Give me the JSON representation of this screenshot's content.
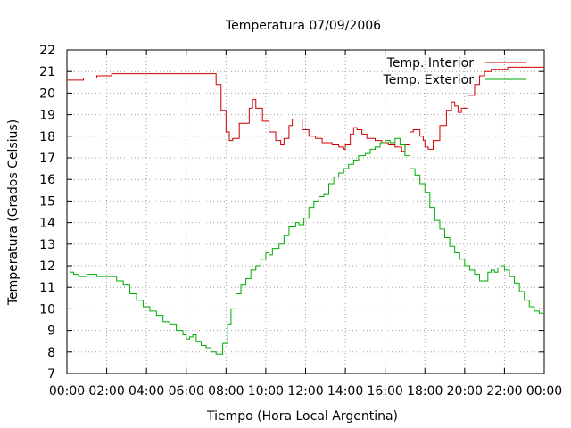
{
  "chart_data": {
    "type": "line",
    "title": "Temperatura 07/09/2006",
    "xlabel": "Tiempo (Hora Local Argentina)",
    "ylabel": "Temperatura (Grados Celsius)",
    "ylim": [
      7,
      22
    ],
    "y_ticks": [
      7,
      8,
      9,
      10,
      11,
      12,
      13,
      14,
      15,
      16,
      17,
      18,
      19,
      20,
      21,
      22
    ],
    "x_tick_labels": [
      "00:00",
      "02:00",
      "04:00",
      "06:00",
      "08:00",
      "10:00",
      "12:00",
      "14:00",
      "16:00",
      "18:00",
      "20:00",
      "22:00",
      "00:00"
    ],
    "grid": true,
    "legend_position": "top-right",
    "series": [
      {
        "name": "Temp. Interior",
        "color": "#cc0000",
        "points": [
          [
            "00:00",
            20.6
          ],
          [
            "00:45",
            20.6
          ],
          [
            "00:50",
            20.7
          ],
          [
            "01:25",
            20.7
          ],
          [
            "01:30",
            20.8
          ],
          [
            "02:10",
            20.8
          ],
          [
            "02:15",
            20.9
          ],
          [
            "07:20",
            20.9
          ],
          [
            "07:30",
            20.4
          ],
          [
            "07:45",
            19.2
          ],
          [
            "08:00",
            18.2
          ],
          [
            "08:10",
            17.8
          ],
          [
            "08:20",
            17.9
          ],
          [
            "08:40",
            18.6
          ],
          [
            "09:10",
            19.3
          ],
          [
            "09:20",
            19.7
          ],
          [
            "09:30",
            19.3
          ],
          [
            "09:50",
            18.7
          ],
          [
            "10:10",
            18.2
          ],
          [
            "10:30",
            17.8
          ],
          [
            "10:45",
            17.6
          ],
          [
            "10:55",
            17.9
          ],
          [
            "11:10",
            18.5
          ],
          [
            "11:20",
            18.8
          ],
          [
            "11:35",
            18.8
          ],
          [
            "11:50",
            18.3
          ],
          [
            "12:10",
            18.0
          ],
          [
            "12:30",
            17.9
          ],
          [
            "12:50",
            17.7
          ],
          [
            "13:20",
            17.6
          ],
          [
            "13:40",
            17.5
          ],
          [
            "13:55",
            17.4
          ],
          [
            "14:00",
            17.6
          ],
          [
            "14:15",
            18.1
          ],
          [
            "14:25",
            18.4
          ],
          [
            "14:35",
            18.3
          ],
          [
            "14:50",
            18.1
          ],
          [
            "15:05",
            17.9
          ],
          [
            "15:30",
            17.8
          ],
          [
            "15:50",
            17.7
          ],
          [
            "16:10",
            17.6
          ],
          [
            "16:30",
            17.5
          ],
          [
            "16:50",
            17.3
          ],
          [
            "17:00",
            17.6
          ],
          [
            "17:15",
            18.2
          ],
          [
            "17:25",
            18.3
          ],
          [
            "17:45",
            18.0
          ],
          [
            "17:55",
            17.8
          ],
          [
            "18:00",
            17.5
          ],
          [
            "18:10",
            17.4
          ],
          [
            "18:25",
            17.8
          ],
          [
            "18:45",
            18.5
          ],
          [
            "19:05",
            19.2
          ],
          [
            "19:20",
            19.6
          ],
          [
            "19:30",
            19.4
          ],
          [
            "19:40",
            19.1
          ],
          [
            "19:50",
            19.3
          ],
          [
            "20:10",
            19.9
          ],
          [
            "20:30",
            20.4
          ],
          [
            "20:45",
            20.8
          ],
          [
            "21:00",
            21.0
          ],
          [
            "21:20",
            21.1
          ],
          [
            "21:50",
            21.1
          ],
          [
            "22:10",
            21.2
          ],
          [
            "24:00",
            21.2
          ]
        ]
      },
      {
        "name": "Temp. Exterior",
        "color": "#00aa00",
        "points": [
          [
            "00:00",
            11.9
          ],
          [
            "00:10",
            11.7
          ],
          [
            "00:20",
            11.6
          ],
          [
            "00:35",
            11.5
          ],
          [
            "01:00",
            11.6
          ],
          [
            "01:30",
            11.5
          ],
          [
            "02:00",
            11.5
          ],
          [
            "02:30",
            11.3
          ],
          [
            "02:50",
            11.1
          ],
          [
            "03:10",
            10.7
          ],
          [
            "03:30",
            10.4
          ],
          [
            "03:50",
            10.1
          ],
          [
            "04:10",
            9.9
          ],
          [
            "04:30",
            9.7
          ],
          [
            "04:50",
            9.4
          ],
          [
            "05:10",
            9.3
          ],
          [
            "05:30",
            9.0
          ],
          [
            "05:50",
            8.8
          ],
          [
            "06:00",
            8.6
          ],
          [
            "06:10",
            8.7
          ],
          [
            "06:20",
            8.8
          ],
          [
            "06:30",
            8.5
          ],
          [
            "06:45",
            8.3
          ],
          [
            "07:00",
            8.2
          ],
          [
            "07:15",
            8.0
          ],
          [
            "07:30",
            7.9
          ],
          [
            "07:40",
            7.9
          ],
          [
            "07:50",
            8.4
          ],
          [
            "08:05",
            9.3
          ],
          [
            "08:15",
            10.0
          ],
          [
            "08:30",
            10.7
          ],
          [
            "08:45",
            11.1
          ],
          [
            "09:00",
            11.4
          ],
          [
            "09:15",
            11.8
          ],
          [
            "09:30",
            12.0
          ],
          [
            "09:45",
            12.3
          ],
          [
            "10:00",
            12.6
          ],
          [
            "10:10",
            12.5
          ],
          [
            "10:20",
            12.8
          ],
          [
            "10:40",
            13.0
          ],
          [
            "10:55",
            13.4
          ],
          [
            "11:10",
            13.8
          ],
          [
            "11:30",
            14.0
          ],
          [
            "11:40",
            13.9
          ],
          [
            "11:55",
            14.2
          ],
          [
            "12:10",
            14.7
          ],
          [
            "12:25",
            15.0
          ],
          [
            "12:40",
            15.2
          ],
          [
            "12:55",
            15.3
          ],
          [
            "13:10",
            15.8
          ],
          [
            "13:25",
            16.1
          ],
          [
            "13:40",
            16.3
          ],
          [
            "13:55",
            16.5
          ],
          [
            "14:10",
            16.7
          ],
          [
            "14:25",
            16.9
          ],
          [
            "14:40",
            17.1
          ],
          [
            "15:00",
            17.2
          ],
          [
            "15:15",
            17.4
          ],
          [
            "15:30",
            17.5
          ],
          [
            "15:45",
            17.7
          ],
          [
            "16:00",
            17.8
          ],
          [
            "16:15",
            17.7
          ],
          [
            "16:30",
            17.9
          ],
          [
            "16:45",
            17.6
          ],
          [
            "17:00",
            17.1
          ],
          [
            "17:15",
            16.5
          ],
          [
            "17:30",
            16.2
          ],
          [
            "17:45",
            15.8
          ],
          [
            "18:00",
            15.4
          ],
          [
            "18:15",
            14.7
          ],
          [
            "18:30",
            14.1
          ],
          [
            "18:45",
            13.7
          ],
          [
            "19:00",
            13.3
          ],
          [
            "19:15",
            12.9
          ],
          [
            "19:30",
            12.6
          ],
          [
            "19:45",
            12.3
          ],
          [
            "20:00",
            12.0
          ],
          [
            "20:15",
            11.8
          ],
          [
            "20:30",
            11.6
          ],
          [
            "20:45",
            11.3
          ],
          [
            "21:00",
            11.3
          ],
          [
            "21:10",
            11.7
          ],
          [
            "21:20",
            11.8
          ],
          [
            "21:30",
            11.7
          ],
          [
            "21:40",
            11.9
          ],
          [
            "21:50",
            12.0
          ],
          [
            "22:00",
            11.8
          ],
          [
            "22:15",
            11.5
          ],
          [
            "22:30",
            11.2
          ],
          [
            "22:45",
            10.8
          ],
          [
            "23:00",
            10.4
          ],
          [
            "23:15",
            10.1
          ],
          [
            "23:30",
            9.9
          ],
          [
            "23:45",
            9.8
          ],
          [
            "24:00",
            9.8
          ]
        ]
      }
    ]
  }
}
